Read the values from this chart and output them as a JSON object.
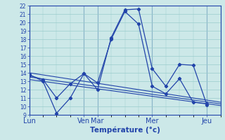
{
  "title": "",
  "xlabel": "Température (°c)",
  "ylabel": "",
  "ylim": [
    9,
    22
  ],
  "yticks": [
    9,
    10,
    11,
    12,
    13,
    14,
    15,
    16,
    17,
    18,
    19,
    20,
    21,
    22
  ],
  "background_color": "#cce8e8",
  "grid_color": "#99cccc",
  "line_color": "#2244aa",
  "day_labels": [
    "Lun",
    "Ven",
    "Mar",
    "Mer",
    "Jeu"
  ],
  "day_positions": [
    0,
    48,
    60,
    108,
    156
  ],
  "x_max": 168,
  "xtick_positions": [
    0,
    48,
    60,
    108,
    156
  ],
  "series": [
    {
      "x": [
        0,
        12,
        24,
        36,
        48,
        60,
        72,
        84,
        96,
        108,
        120,
        132,
        144,
        156
      ],
      "y": [
        13.8,
        13.0,
        9.2,
        11.0,
        13.9,
        12.0,
        18.2,
        21.5,
        21.6,
        14.5,
        12.4,
        15.0,
        14.9,
        10.2
      ],
      "marker": true
    },
    {
      "x": [
        0,
        12,
        24,
        36,
        48,
        60,
        72,
        84,
        96,
        108,
        120,
        132,
        144,
        156
      ],
      "y": [
        13.7,
        13.2,
        11.0,
        12.7,
        13.9,
        12.8,
        18.0,
        21.3,
        19.8,
        12.4,
        11.5,
        13.3,
        10.5,
        10.3
      ],
      "marker": true
    },
    {
      "x": [
        0,
        168
      ],
      "y": [
        14.0,
        10.5
      ],
      "marker": false
    },
    {
      "x": [
        0,
        168
      ],
      "y": [
        13.5,
        10.3
      ],
      "marker": false
    },
    {
      "x": [
        0,
        168
      ],
      "y": [
        13.2,
        10.1
      ],
      "marker": false
    }
  ]
}
